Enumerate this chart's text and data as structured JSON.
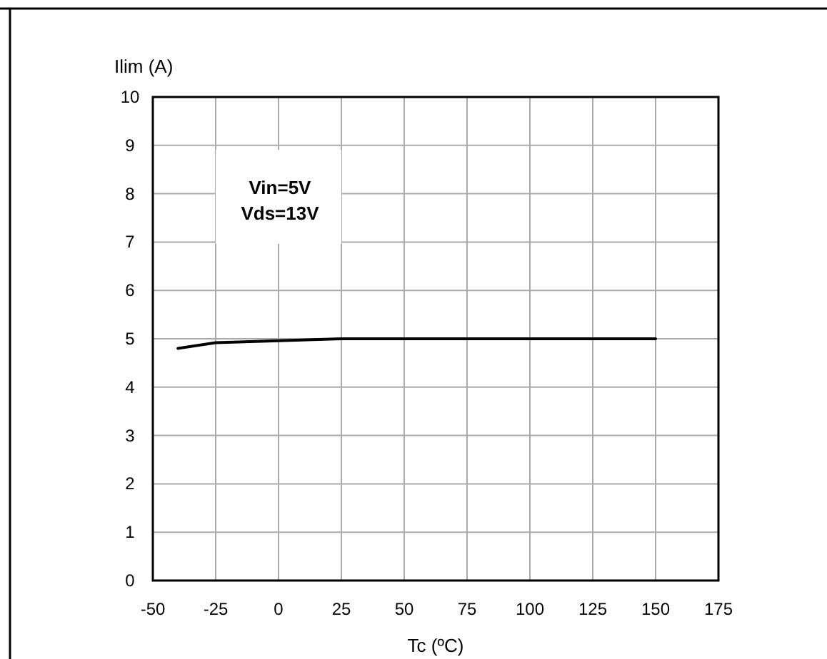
{
  "chart_data": {
    "type": "line",
    "xlabel": "Tc (ºC)",
    "ylabel": "Ilim (A)",
    "x": [
      -40,
      -25,
      0,
      25,
      50,
      75,
      100,
      125,
      150
    ],
    "series": [
      {
        "color": "#000000",
        "values": [
          4.8,
          4.92,
          4.96,
          5.0,
          5.0,
          5.0,
          5.0,
          5.0,
          5.0
        ]
      }
    ],
    "xlim": [
      -50,
      175
    ],
    "xticks": [
      -50,
      -25,
      0,
      25,
      50,
      75,
      100,
      125,
      150,
      175
    ],
    "ylim": [
      0,
      10
    ],
    "yticks": [
      0,
      1,
      2,
      3,
      4,
      5,
      6,
      7,
      8,
      9,
      10
    ],
    "grid": true,
    "marker": "none",
    "line_style": "solid",
    "annotations": [
      "Vin=5V\nVds=13V"
    ]
  }
}
